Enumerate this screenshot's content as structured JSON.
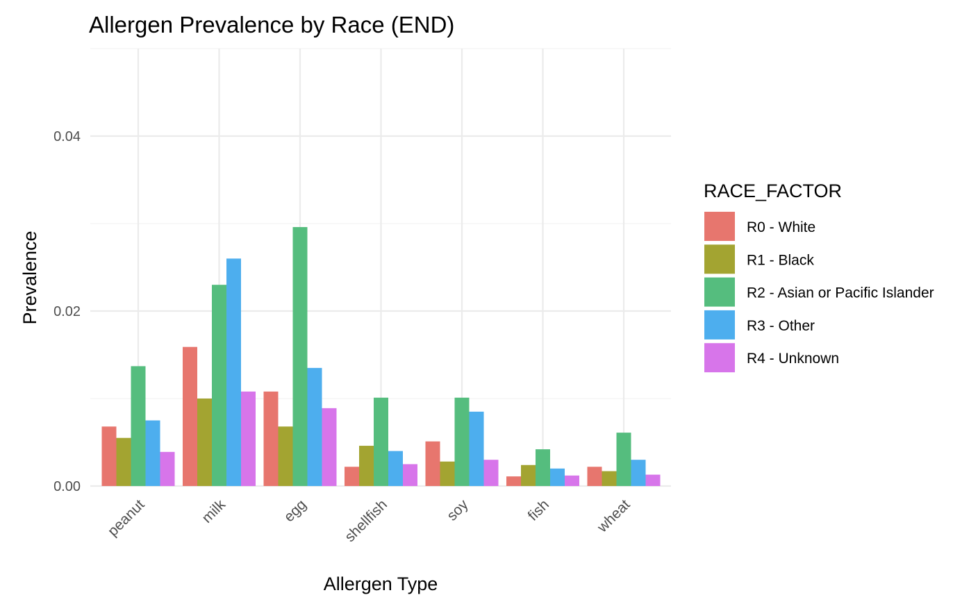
{
  "chart_data": {
    "type": "bar",
    "title": "Allergen Prevalence by Race (END)",
    "xlabel": "Allergen Type",
    "ylabel": "Prevalence",
    "categories": [
      "peanut",
      "milk",
      "egg",
      "shellfish",
      "soy",
      "fish",
      "wheat"
    ],
    "yticks": [
      0.0,
      0.02,
      0.04
    ],
    "ytick_labels": [
      "0.00",
      "0.02",
      "0.04"
    ],
    "ylim": [
      0,
      0.05
    ],
    "grid": true,
    "legend": {
      "title": "RACE_FACTOR",
      "placement": "right"
    },
    "series": [
      {
        "name": "R0 - White",
        "color": "#E7766E",
        "values": [
          0.0068,
          0.0159,
          0.0108,
          0.0022,
          0.0051,
          0.0011,
          0.0022
        ]
      },
      {
        "name": "R1 - Black",
        "color": "#A3A431",
        "values": [
          0.0055,
          0.01,
          0.0068,
          0.0046,
          0.0028,
          0.0024,
          0.0017
        ]
      },
      {
        "name": "R2 - Asian or Pacific Islander",
        "color": "#55BD7E",
        "values": [
          0.0137,
          0.023,
          0.0296,
          0.0101,
          0.0101,
          0.0042,
          0.0061
        ]
      },
      {
        "name": "R3 - Other",
        "color": "#4DAEEE",
        "values": [
          0.0075,
          0.026,
          0.0135,
          0.004,
          0.0085,
          0.002,
          0.003
        ]
      },
      {
        "name": "R4 - Unknown",
        "color": "#D775EA",
        "values": [
          0.0039,
          0.0108,
          0.0089,
          0.0025,
          0.003,
          0.0012,
          0.0013
        ]
      }
    ]
  }
}
